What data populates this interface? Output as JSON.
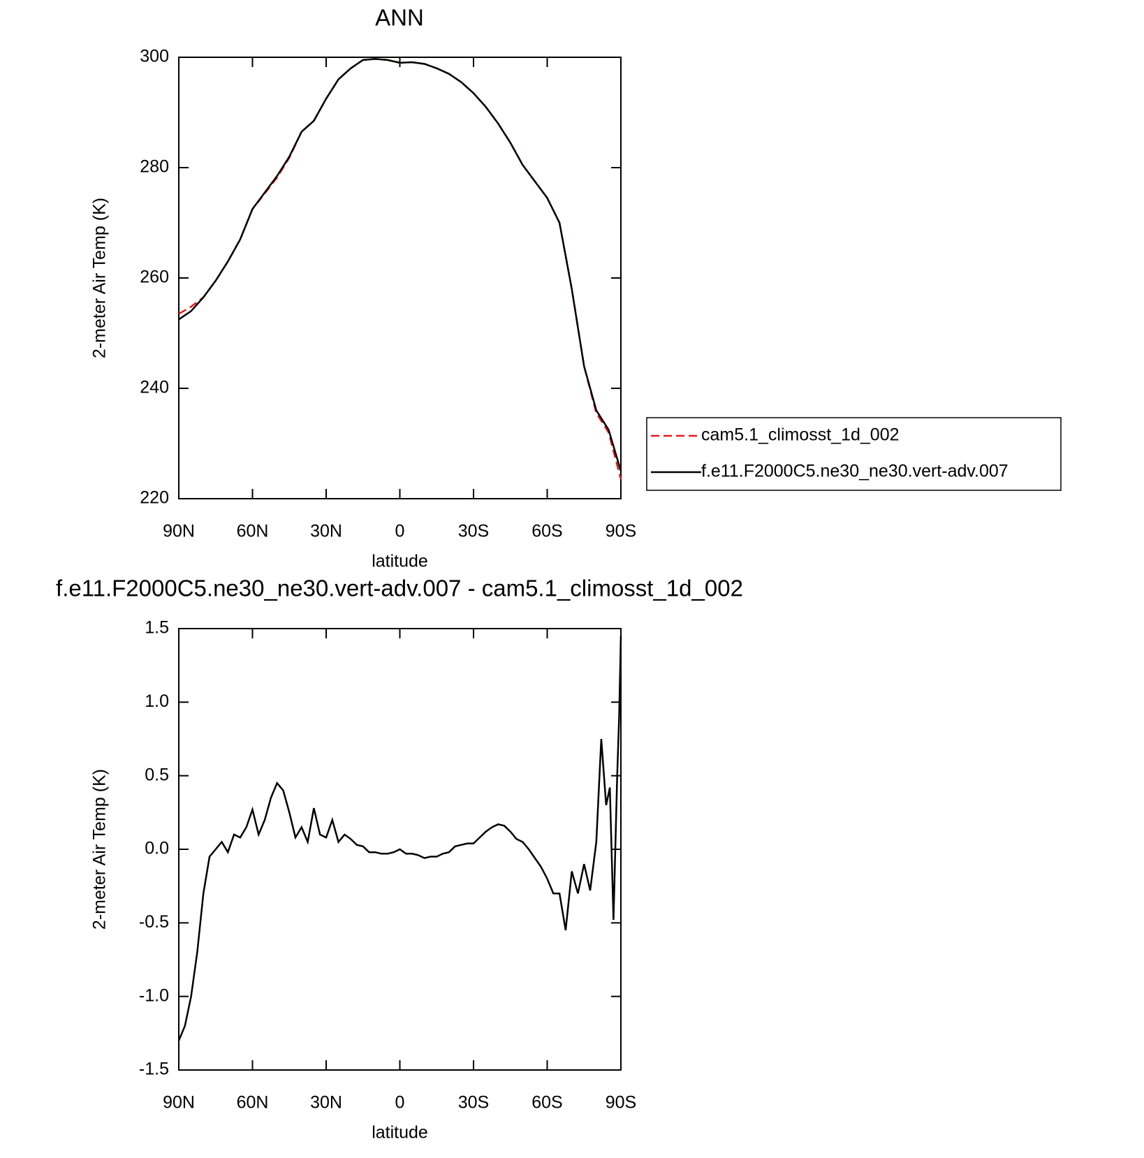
{
  "chart_data": [
    {
      "type": "line",
      "title": "ANN",
      "xlabel": "latitude",
      "ylabel": "2-meter Air Temp (K)",
      "x": [
        90,
        85,
        80,
        75,
        70,
        65,
        60,
        55,
        50,
        45,
        40,
        35,
        30,
        25,
        20,
        15,
        10,
        5,
        0,
        -5,
        -10,
        -15,
        -20,
        -25,
        -30,
        -35,
        -40,
        -45,
        -50,
        -55,
        -60,
        -65,
        -70,
        -75,
        -80,
        -85,
        -90
      ],
      "xlim": [
        90,
        -90
      ],
      "xticks": [
        {
          "value": 90,
          "label": "90N"
        },
        {
          "value": 60,
          "label": "60N"
        },
        {
          "value": 30,
          "label": "30N"
        },
        0,
        {
          "value": -30,
          "label": "30S"
        },
        {
          "value": -60,
          "label": "60S"
        },
        {
          "value": -90,
          "label": "90S"
        }
      ],
      "ylim": [
        220,
        300
      ],
      "yticks": [
        220,
        240,
        260,
        280,
        300
      ],
      "legend": "outside-right",
      "series": [
        {
          "name": "cam5.1_climosst_1d_002",
          "color": "#e8191c",
          "dash": "dashed",
          "values": [
            253.5,
            254.8,
            256.5,
            259.5,
            263,
            267,
            272.5,
            275.3,
            278.2,
            281.8,
            286.5,
            288.5,
            292.5,
            296,
            298,
            299.5,
            299.7,
            299.5,
            299,
            299.1,
            298.8,
            298,
            297,
            295.5,
            293.5,
            291,
            288,
            284.5,
            280.5,
            277.5,
            274.5,
            270,
            258,
            244,
            235.5,
            232,
            223.5
          ]
        },
        {
          "name": "f.e11.F2000C5.ne30_ne30.vert-adv.007",
          "color": "#000000",
          "dash": "solid",
          "values": [
            252.5,
            254,
            256.5,
            259.5,
            263,
            267,
            272.5,
            275.5,
            278.5,
            282,
            286.5,
            288.5,
            292.5,
            296,
            298,
            299.5,
            299.7,
            299.5,
            299,
            299.1,
            298.8,
            298,
            297,
            295.5,
            293.5,
            291,
            288,
            284.5,
            280.5,
            277.5,
            274.5,
            270,
            258,
            244,
            236,
            232.5,
            225
          ]
        }
      ]
    },
    {
      "type": "line",
      "title": "f.e11.F2000C5.ne30_ne30.vert-adv.007 - cam5.1_climosst_1d_002",
      "xlabel": "latitude",
      "ylabel": "2-meter Air Temp (K)",
      "x": [
        90,
        87.5,
        85,
        82.5,
        80,
        77.5,
        75,
        72.5,
        70,
        67.5,
        65,
        62.5,
        60,
        57.5,
        55,
        52.5,
        50,
        47.5,
        45,
        42.5,
        40,
        37.5,
        35,
        32.5,
        30,
        27.5,
        25,
        22.5,
        20,
        17.5,
        15,
        12.5,
        10,
        7.5,
        5,
        2.5,
        0,
        -2.5,
        -5,
        -7.5,
        -10,
        -12.5,
        -15,
        -17.5,
        -20,
        -22.5,
        -25,
        -27.5,
        -30,
        -32.5,
        -35,
        -37.5,
        -40,
        -42.5,
        -45,
        -47.5,
        -50,
        -52.5,
        -55,
        -57.5,
        -60,
        -62.5,
        -65,
        -67.5,
        -70,
        -72.5,
        -75,
        -77.5,
        -80,
        -82,
        -84,
        -85.5,
        -87,
        -88.5,
        -89.3,
        -90
      ],
      "xlim": [
        90,
        -90
      ],
      "xticks": [
        {
          "value": 90,
          "label": "90N"
        },
        {
          "value": 60,
          "label": "60N"
        },
        {
          "value": 30,
          "label": "30N"
        },
        0,
        {
          "value": -30,
          "label": "30S"
        },
        {
          "value": -60,
          "label": "60S"
        },
        {
          "value": -90,
          "label": "90S"
        }
      ],
      "ylim": [
        -1.5,
        1.5
      ],
      "yticks": [
        -1.5,
        {
          "value": -1,
          "label": "-1.0"
        },
        -0.5,
        {
          "value": 0,
          "label": "0.0"
        },
        0.5,
        {
          "value": 1,
          "label": "1.0"
        },
        1.5
      ],
      "legend": "none",
      "series": [
        {
          "name": "f.e11.F2000C5.ne30_ne30.vert-adv.007 - cam5.1_climosst_1d_002",
          "color": "#000000",
          "dash": "solid",
          "values": [
            -1.3,
            -1.2,
            -1.0,
            -0.7,
            -0.3,
            -0.05,
            0.0,
            0.05,
            -0.02,
            0.1,
            0.08,
            0.15,
            0.27,
            0.1,
            0.2,
            0.35,
            0.45,
            0.4,
            0.25,
            0.08,
            0.15,
            0.05,
            0.28,
            0.1,
            0.08,
            0.2,
            0.05,
            0.1,
            0.07,
            0.03,
            0.02,
            -0.02,
            -0.02,
            -0.03,
            -0.03,
            -0.02,
            0.0,
            -0.03,
            -0.03,
            -0.04,
            -0.06,
            -0.05,
            -0.05,
            -0.03,
            -0.02,
            0.02,
            0.03,
            0.04,
            0.04,
            0.08,
            0.12,
            0.15,
            0.17,
            0.16,
            0.12,
            0.07,
            0.05,
            0.0,
            -0.06,
            -0.12,
            -0.2,
            -0.3,
            -0.3,
            -0.55,
            -0.15,
            -0.3,
            -0.1,
            -0.28,
            0.05,
            0.75,
            0.3,
            0.42,
            -0.48,
            0.5,
            0.9,
            1.45
          ]
        }
      ]
    }
  ]
}
